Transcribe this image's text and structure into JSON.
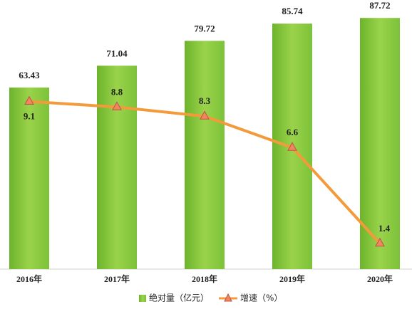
{
  "chart_data": {
    "type": "bar-line",
    "categories": [
      "2016年",
      "2017年",
      "2018年",
      "2019年",
      "2020年"
    ],
    "series": [
      {
        "name": "绝对量（亿元）",
        "type": "bar",
        "color": "#7cc23a",
        "values": [
          63.43,
          71.04,
          79.72,
          85.74,
          87.72
        ]
      },
      {
        "name": "增速（%）",
        "type": "line",
        "axis": "y2",
        "color": "#f39b3a",
        "values": [
          9.1,
          8.8,
          8.3,
          6.6,
          1.4
        ]
      }
    ],
    "ylim": [
      0,
      92
    ],
    "y2lim": [
      0,
      14.3
    ],
    "grid": false,
    "legend": "bottom"
  }
}
